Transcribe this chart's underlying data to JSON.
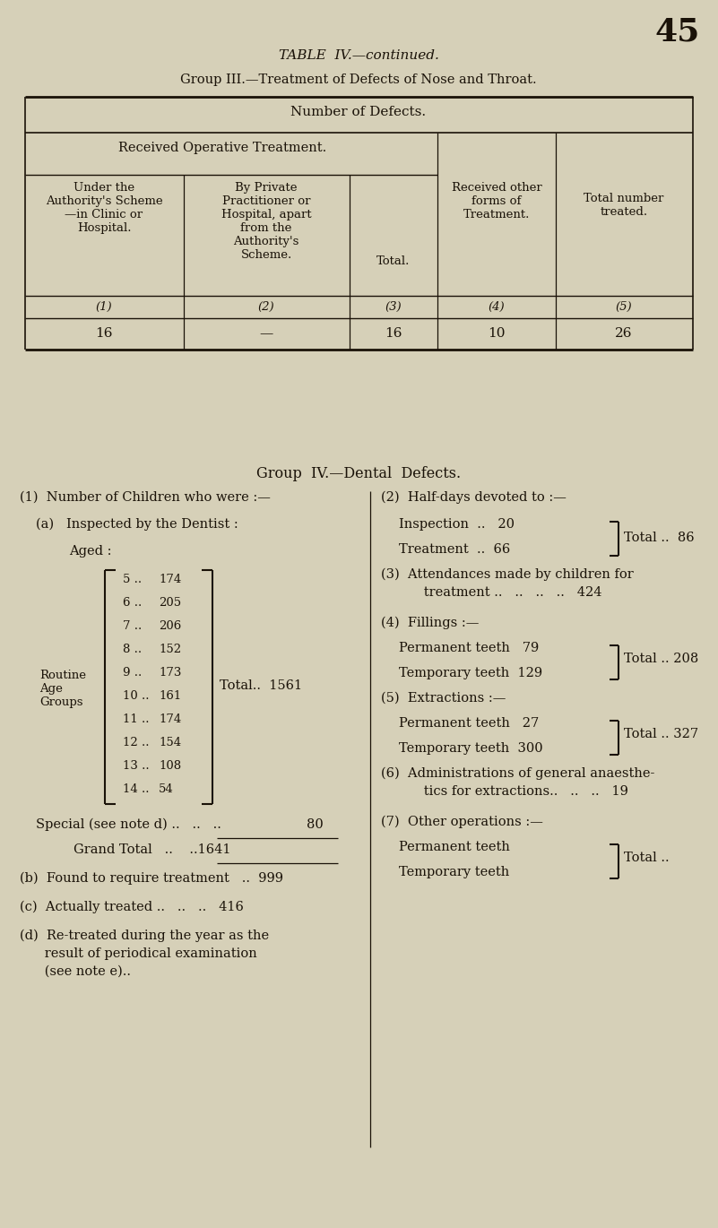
{
  "bg_color": "#d6d0b8",
  "text_color": "#1a1208",
  "page_number": "45",
  "title1": "TABLE  IV.—continued.",
  "title2": "Group III.—Treatment of Defects of Nose and Throat.",
  "table1": {
    "header1": "Number of Defects.",
    "header2": "Received Operative Treatment.",
    "col1_header": "Under the\nAuthority's Scheme\n—in Clinic or\nHospital.",
    "col2_header": "By Private\nPractitioner or\nHospital, apart\nfrom the\nAuthority's\nScheme.",
    "col3_header": "Total.",
    "col4_header": "Received other\nforms of\nTreatment.",
    "col5_header": "Total number\ntreated.",
    "col1_num": "(1)",
    "col2_num": "(2)",
    "col3_num": "(3)",
    "col4_num": "(4)",
    "col5_num": "(5)",
    "row1": [
      "16",
      "—",
      "16",
      "10",
      "26"
    ]
  },
  "title3": "Group  IV.—Dental  Defects.",
  "left_col": {
    "item1_label": "(1)  Number of Children who were :—",
    "item1a_label": "(a)   Inspected by the Dentist :",
    "aged_label": "Aged :",
    "routine_label": "Routine\nAge\nGroups",
    "ages": [
      "5",
      "6",
      "7",
      "8",
      "9",
      "10",
      "11",
      "12",
      "13",
      "14"
    ],
    "age_values": [
      "174",
      "205",
      "206",
      "152",
      "173",
      "161",
      "174",
      "154",
      "108",
      "54"
    ],
    "special_label": "Special (see note d) ..",
    "special_dots": "..   ..",
    "special_value": "80",
    "grand_total_label": "Grand Total",
    "grand_total_dots": "..",
    "grand_total_value": "1641",
    "item_b_label": "(b)  Found to require treatment",
    "item_b_dots": "..",
    "item_b_value": "999",
    "item_c_label": "(c)  Actually treated ..",
    "item_c_dots": "..   ..",
    "item_c_value": "416",
    "item_d_line1": "(d)  Re-treated during the year as the",
    "item_d_line2": "      result of periodical examination",
    "item_d_line3": "      (see note e).."
  },
  "right_col": {
    "item2_label": "(2)  Half-days devoted to :—",
    "inspection_label": "Inspection",
    "inspection_dots": "..",
    "inspection_value": "20",
    "treatment_label": "Treatment",
    "treatment_dots": "..",
    "treatment_value": "66",
    "halfdays_total": "Total ..  86",
    "item3_line1": "(3)  Attendances made by children for",
    "item3_line2": "      treatment ..",
    "item3_dots": "..",
    "item3_value": "424",
    "item4_label": "(4)  Fillings :—",
    "perm_teeth_label": "Permanent teeth",
    "perm_teeth_value": "79",
    "temp_teeth_label": "Temporary teeth",
    "temp_teeth_value": "129",
    "fillings_total": "Total .. 208",
    "item5_label": "(5)  Extractions :—",
    "ext_perm_label": "Permanent teeth",
    "ext_perm_value": "27",
    "ext_temp_label": "Temporary teeth",
    "ext_temp_value": "300",
    "ext_total": "Total .. 327",
    "item6_line1": "(6)  Administrations of general anaesthe-",
    "item6_line2": "      tics for extractions..",
    "item6_dots": "..",
    "item6_value": "19",
    "item7_label": "(7)  Other operations :—",
    "other_perm_label": "Permanent teeth",
    "other_temp_label": "Temporary teeth",
    "other_total": "Total .."
  }
}
